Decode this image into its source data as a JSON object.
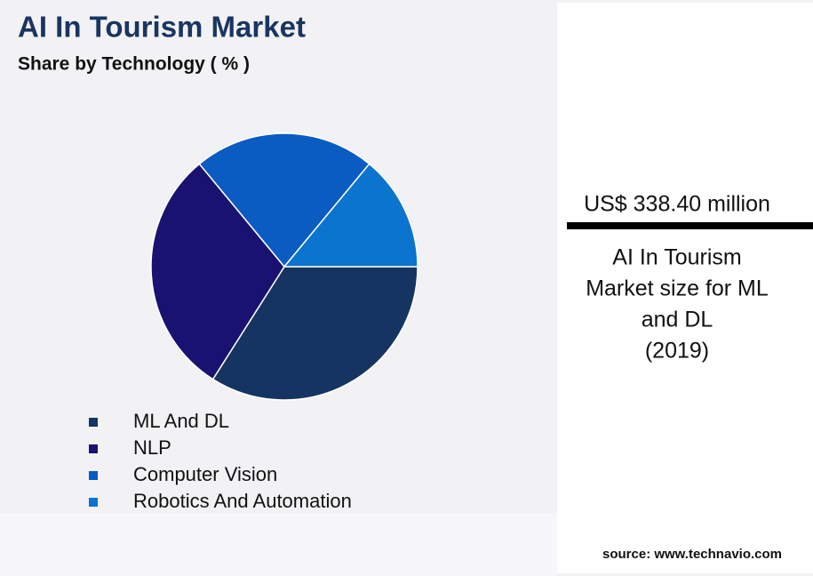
{
  "chart_data": {
    "type": "pie",
    "title": "AI In Tourism Market",
    "subtitle": "Share by Technology ( % )",
    "categories": [
      "ML And DL",
      "NLP",
      "Computer Vision",
      "Robotics And Automation"
    ],
    "values": [
      34,
      30,
      22,
      14
    ],
    "colors": [
      "#163461",
      "#1a1270",
      "#0a5cc2",
      "#0a74cf"
    ],
    "highlight_value": "US$ 338.40 million",
    "highlight_label": [
      "AI In Tourism",
      "Market size for ML",
      "and DL",
      "(2019)"
    ],
    "source": "source: www.technavio.com"
  }
}
